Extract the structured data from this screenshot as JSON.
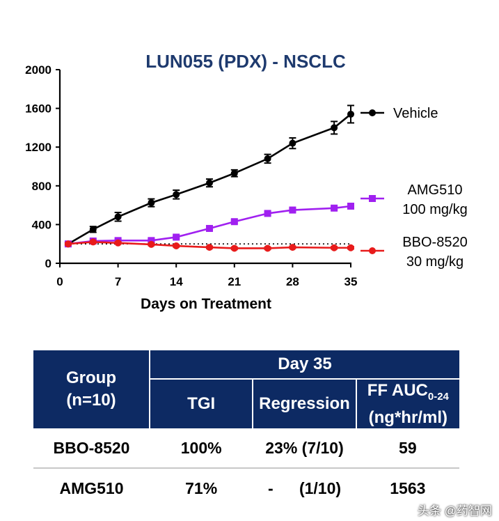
{
  "chart_data": {
    "type": "line",
    "title": "LUN055 (PDX) - NSCLC",
    "xlabel": "Days on Treatment",
    "ylabel": "",
    "xlim": [
      0,
      35
    ],
    "ylim": [
      0,
      2000
    ],
    "xticks": [
      0,
      7,
      14,
      21,
      28,
      35
    ],
    "yticks": [
      0,
      400,
      800,
      1200,
      1600,
      2000
    ],
    "baseline": {
      "y": 200,
      "style": "dotted"
    },
    "series": [
      {
        "name": "Vehicle",
        "legend_lines": [
          "Vehicle"
        ],
        "color": "#000000",
        "x": [
          1,
          4,
          7,
          11,
          14,
          18,
          21,
          25,
          28,
          33,
          35
        ],
        "y": [
          200,
          350,
          480,
          625,
          710,
          830,
          930,
          1080,
          1240,
          1400,
          1540
        ],
        "err": [
          15,
          30,
          45,
          40,
          45,
          40,
          35,
          45,
          55,
          65,
          90
        ]
      },
      {
        "name": "AMG510 100 mg/kg",
        "legend_lines": [
          "AMG510",
          "100 mg/kg"
        ],
        "color": "#a020f0",
        "x": [
          1,
          4,
          7,
          11,
          14,
          18,
          21,
          25,
          28,
          33,
          35
        ],
        "y": [
          200,
          230,
          235,
          235,
          270,
          360,
          430,
          515,
          550,
          570,
          590
        ],
        "err": [
          10,
          12,
          15,
          15,
          15,
          15,
          15,
          15,
          15,
          15,
          15
        ]
      },
      {
        "name": "BBO-8520 30 mg/kg",
        "legend_lines": [
          "BBO-8520",
          "30 mg/kg"
        ],
        "color": "#e81b1b",
        "x": [
          1,
          4,
          7,
          11,
          14,
          18,
          21,
          25,
          28,
          33,
          35
        ],
        "y": [
          200,
          220,
          210,
          195,
          180,
          165,
          155,
          155,
          165,
          160,
          160
        ],
        "err": [
          10,
          12,
          12,
          12,
          12,
          12,
          12,
          12,
          12,
          12,
          12
        ]
      }
    ]
  },
  "table": {
    "group_header_line1": "Group",
    "group_header_line2": "(n=10)",
    "day_header": "Day 35",
    "tgi_header": "TGI",
    "regression_header": "Regression",
    "auc_header_prefix": "FF AUC",
    "auc_header_subscript": "0-24",
    "auc_header_units": "(ng*hr/ml)",
    "rows": [
      {
        "group": "BBO-8520",
        "tgi": "100%",
        "regression": "23% (7/10)",
        "auc": "59"
      },
      {
        "group": "AMG510",
        "tgi": "71%",
        "regression_dash": "-",
        "regression_count": "(1/10)",
        "auc": "1563"
      }
    ]
  },
  "watermark": "头条 @药智网"
}
